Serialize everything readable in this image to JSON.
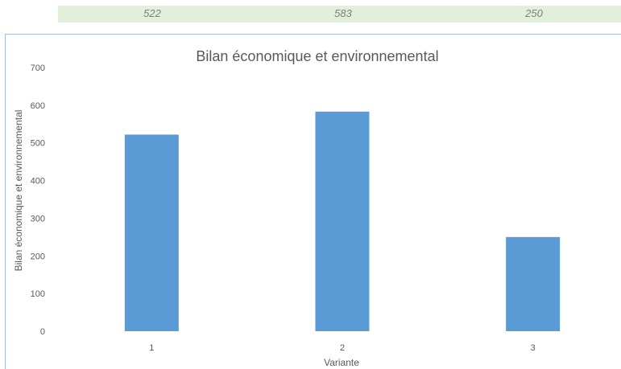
{
  "table_row": {
    "values": [
      "522",
      "583",
      "250"
    ]
  },
  "chart_data": {
    "type": "bar",
    "title": "Bilan économique et environnemental",
    "xlabel": "Variante",
    "ylabel": "Bilan économique et environnemental",
    "categories": [
      "1",
      "2",
      "3"
    ],
    "values": [
      522,
      583,
      250
    ],
    "ylim": [
      0,
      700
    ],
    "yticks": [
      "0",
      "100",
      "200",
      "300",
      "400",
      "500",
      "600",
      "700"
    ],
    "bar_color": "#5b9bd5",
    "grid": false,
    "legend": "none"
  }
}
